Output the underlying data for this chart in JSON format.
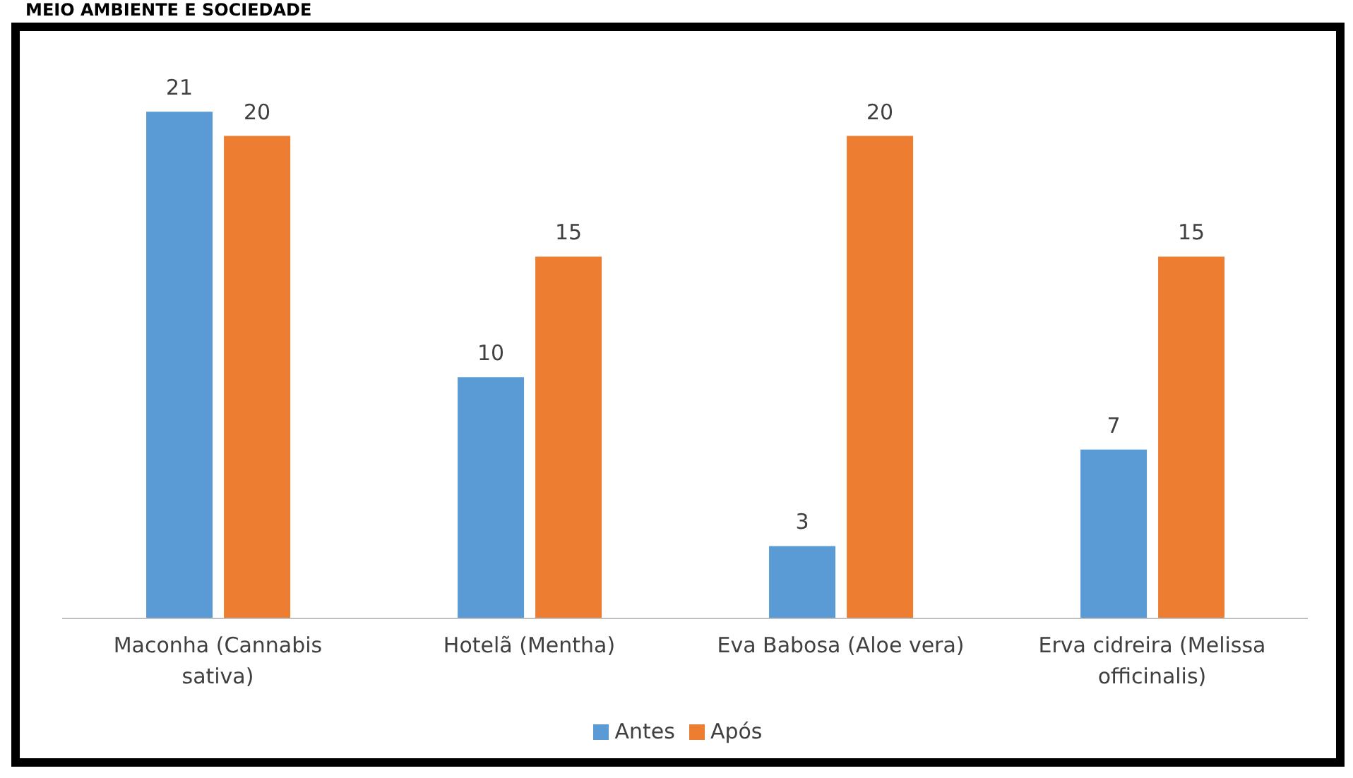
{
  "chart_data": {
    "type": "bar",
    "title": "MEIO AMBIENTE E SOCIEDADE",
    "categories": [
      "Maconha (Cannabis sativa)",
      "Hotelã (Mentha)",
      "Eva Babosa (Aloe vera)",
      "Erva cidreira (Melissa officinalis)"
    ],
    "series": [
      {
        "name": "Antes",
        "color": "#5b9bd5",
        "values": [
          21,
          10,
          3,
          7
        ]
      },
      {
        "name": "Após",
        "color": "#ed7d31",
        "values": [
          20,
          15,
          20,
          15
        ]
      }
    ],
    "data_labels": true,
    "legend": "bottom",
    "grid": false
  }
}
